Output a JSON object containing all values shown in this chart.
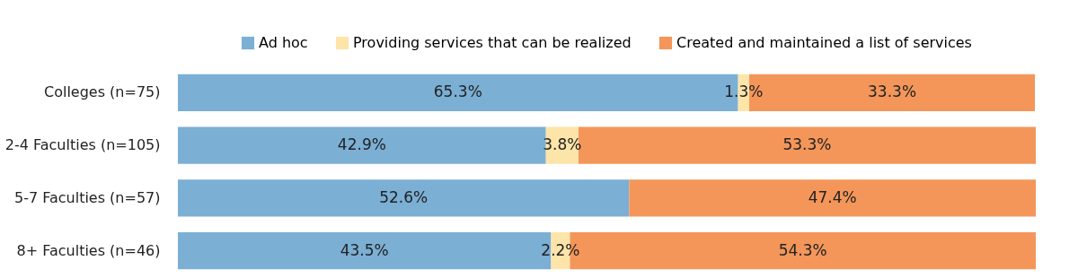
{
  "chart_data": {
    "type": "bar",
    "orientation": "horizontal",
    "stacked": true,
    "legend": "top right",
    "categories": [
      "Colleges (n=75)",
      "2-4 Faculties (n=105)",
      "5-7 Faculties (n=57)",
      "8+ Faculties (n=46)"
    ],
    "series": [
      {
        "name": "Ad hoc",
        "color": "#7bafd4",
        "values": [
          65.3,
          42.9,
          52.6,
          43.5
        ],
        "value_labels": [
          "65.3%",
          "42.9%",
          "52.6%",
          "43.5%"
        ]
      },
      {
        "name": "Providing services that can be realized",
        "color": "#fde4a8",
        "values": [
          1.3,
          3.8,
          0,
          2.2
        ],
        "value_labels": [
          "1.3%",
          "3.8%",
          null,
          "2.2%"
        ]
      },
      {
        "name": "Created and maintained a list of services",
        "color": "#f4965a",
        "values": [
          33.3,
          53.3,
          47.4,
          54.3
        ],
        "value_labels": [
          "33.3%",
          "53.3%",
          "47.4%",
          "54.3%"
        ]
      }
    ]
  }
}
